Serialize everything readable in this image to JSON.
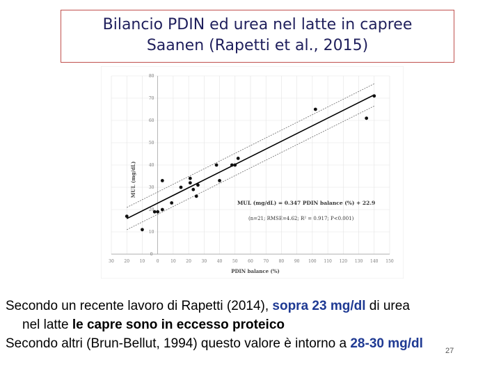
{
  "title": {
    "line1": "Bilancio PDIN ed urea nel latte in capree",
    "line2": "Saanen (Rapetti et al., 2015)"
  },
  "chart_data": {
    "type": "scatter",
    "xlabel": "PDIN balance (%)",
    "ylabel": "MUL (mg/dL)",
    "xlim": [
      -30,
      150
    ],
    "ylim": [
      0,
      80
    ],
    "x_ticks": [
      "30",
      "20",
      "10",
      "0",
      "10",
      "20",
      "30",
      "40",
      "50",
      "60",
      "70",
      "80",
      "90",
      "100",
      "110",
      "120",
      "130",
      "140",
      "150"
    ],
    "y_ticks": [
      "0",
      "10",
      "20",
      "30",
      "40",
      "50",
      "60",
      "70",
      "80"
    ],
    "grid": true,
    "points": [
      {
        "x": -20,
        "y": 17
      },
      {
        "x": -10,
        "y": 11
      },
      {
        "x": -2,
        "y": 19
      },
      {
        "x": 0,
        "y": 19
      },
      {
        "x": 3,
        "y": 20
      },
      {
        "x": 3,
        "y": 33
      },
      {
        "x": 9,
        "y": 23
      },
      {
        "x": 15,
        "y": 30
      },
      {
        "x": 21,
        "y": 34
      },
      {
        "x": 21,
        "y": 32
      },
      {
        "x": 23,
        "y": 29
      },
      {
        "x": 25,
        "y": 26
      },
      {
        "x": 26,
        "y": 31
      },
      {
        "x": 38,
        "y": 40
      },
      {
        "x": 40,
        "y": 33
      },
      {
        "x": 48,
        "y": 40
      },
      {
        "x": 50,
        "y": 40
      },
      {
        "x": 52,
        "y": 43
      },
      {
        "x": 102,
        "y": 65
      },
      {
        "x": 135,
        "y": 61
      },
      {
        "x": 140,
        "y": 71
      }
    ],
    "regression": {
      "slope": 0.347,
      "intercept": 22.9,
      "x_range": [
        -20,
        140
      ]
    },
    "interval_width": 5,
    "equation": "MUL (mg/dL) = 0.347 PDIN balance (%) + 22.9",
    "stats": "(n=21; RMSE=4.62; R² = 0.917; P<0.001)"
  },
  "text": {
    "p1_a": "Secondo un recente lavoro di Rapetti (2014), ",
    "p1_b": "sopra 23 mg/dl",
    "p1_c": " di urea",
    "p1_d": "nel latte ",
    "p1_e": "le capre sono in eccesso proteico",
    "p2_a": "Secondo altri (Brun-Bellut, 1994) questo valore è intorno a ",
    "p2_b": "28-30 mg/dl"
  },
  "slide_number": "27",
  "colors": {
    "title": "#1f1f5c",
    "title_border": "#c0504d",
    "highlight": "#1f3a93"
  }
}
